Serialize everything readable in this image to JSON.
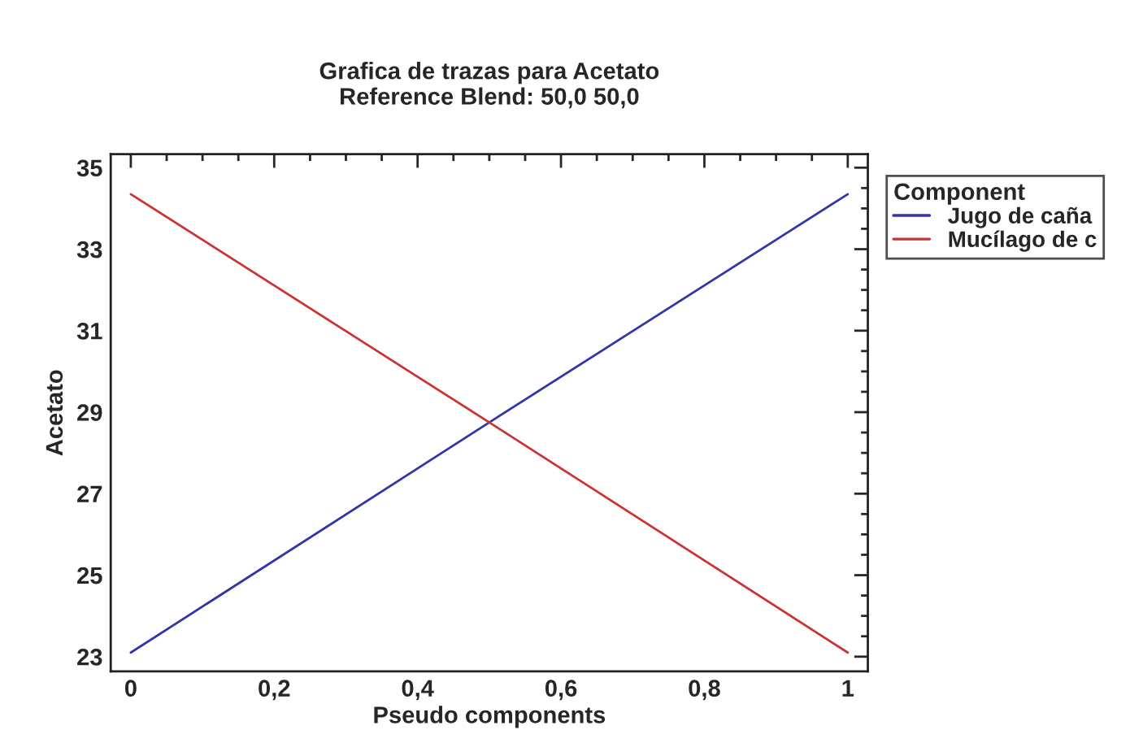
{
  "chart_data": {
    "type": "line",
    "title": "Grafica de trazas para Acetato\nReference Blend: 50,0 50,0",
    "xlabel": "Pseudo components",
    "ylabel": "Acetato",
    "legend_title": "Component",
    "x": [
      0,
      0.5,
      1
    ],
    "series": [
      {
        "name": "Jugo de caña",
        "color": "#3333aa",
        "values": [
          23.1,
          28.75,
          34.35
        ]
      },
      {
        "name": "Mucílago de c",
        "color": "#cc3333",
        "values": [
          34.35,
          28.75,
          23.1
        ]
      }
    ],
    "xlim": [
      -0.028,
      1.028
    ],
    "xticks": [
      {
        "value": 0,
        "label": "0"
      },
      {
        "value": 0.2,
        "label": "0,2"
      },
      {
        "value": 0.4,
        "label": "0,4"
      },
      {
        "value": 0.6,
        "label": "0,6"
      },
      {
        "value": 0.8,
        "label": "0,8"
      },
      {
        "value": 1,
        "label": "1"
      }
    ],
    "ylim": [
      22.64,
      35.33
    ],
    "yticks": [
      23,
      25,
      27,
      29,
      31,
      33,
      35
    ],
    "grid": false,
    "legend": "right",
    "marker": "none",
    "line_style": "solid"
  }
}
